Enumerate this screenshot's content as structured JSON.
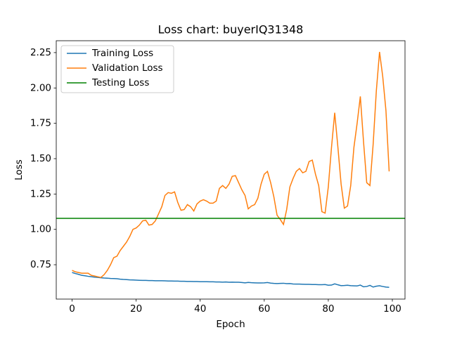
{
  "chart_data": {
    "type": "line",
    "title": "Loss chart: buyerIQ31348",
    "x_label": "Epoch",
    "y_label": "Loss",
    "x": [
      0,
      1,
      2,
      3,
      4,
      5,
      6,
      7,
      8,
      9,
      10,
      11,
      12,
      13,
      14,
      15,
      16,
      17,
      18,
      19,
      20,
      21,
      22,
      23,
      24,
      25,
      26,
      27,
      28,
      29,
      30,
      31,
      32,
      33,
      34,
      35,
      36,
      37,
      38,
      39,
      40,
      41,
      42,
      43,
      44,
      45,
      46,
      47,
      48,
      49,
      50,
      51,
      52,
      53,
      54,
      55,
      56,
      57,
      58,
      59,
      60,
      61,
      62,
      63,
      64,
      65,
      66,
      67,
      68,
      69,
      70,
      71,
      72,
      73,
      74,
      75,
      76,
      77,
      78,
      79,
      80,
      81,
      82,
      83,
      84,
      85,
      86,
      87,
      88,
      89,
      90,
      91,
      92,
      93,
      94,
      95,
      96,
      97,
      98,
      99
    ],
    "series": [
      {
        "name": "Training Loss",
        "color": "#1f77b4",
        "values": [
          0.695,
          0.688,
          0.682,
          0.675,
          0.672,
          0.668,
          0.665,
          0.662,
          0.66,
          0.658,
          0.656,
          0.655,
          0.653,
          0.652,
          0.651,
          0.648,
          0.646,
          0.645,
          0.643,
          0.642,
          0.641,
          0.64,
          0.639,
          0.639,
          0.638,
          0.638,
          0.637,
          0.637,
          0.637,
          0.636,
          0.635,
          0.635,
          0.634,
          0.634,
          0.633,
          0.633,
          0.632,
          0.632,
          0.631,
          0.631,
          0.63,
          0.63,
          0.63,
          0.629,
          0.629,
          0.628,
          0.628,
          0.627,
          0.628,
          0.626,
          0.627,
          0.626,
          0.626,
          0.624,
          0.622,
          0.625,
          0.623,
          0.622,
          0.621,
          0.621,
          0.622,
          0.624,
          0.62,
          0.618,
          0.617,
          0.618,
          0.619,
          0.616,
          0.617,
          0.614,
          0.613,
          0.613,
          0.612,
          0.611,
          0.611,
          0.61,
          0.61,
          0.609,
          0.609,
          0.61,
          0.605,
          0.606,
          0.615,
          0.608,
          0.602,
          0.603,
          0.605,
          0.602,
          0.601,
          0.6,
          0.606,
          0.594,
          0.596,
          0.604,
          0.592,
          0.598,
          0.601,
          0.596,
          0.592,
          0.59
        ]
      },
      {
        "name": "Validation Loss",
        "color": "#ff7f0e",
        "values": [
          0.71,
          0.7,
          0.695,
          0.69,
          0.69,
          0.69,
          0.675,
          0.67,
          0.665,
          0.66,
          0.68,
          0.71,
          0.75,
          0.8,
          0.81,
          0.85,
          0.88,
          0.91,
          0.95,
          1.0,
          1.01,
          1.03,
          1.06,
          1.065,
          1.03,
          1.035,
          1.06,
          1.11,
          1.16,
          1.24,
          1.26,
          1.255,
          1.265,
          1.19,
          1.135,
          1.14,
          1.175,
          1.16,
          1.13,
          1.18,
          1.2,
          1.21,
          1.2,
          1.185,
          1.185,
          1.2,
          1.29,
          1.31,
          1.29,
          1.32,
          1.375,
          1.38,
          1.33,
          1.28,
          1.24,
          1.145,
          1.165,
          1.175,
          1.22,
          1.32,
          1.39,
          1.41,
          1.33,
          1.23,
          1.1,
          1.07,
          1.035,
          1.14,
          1.3,
          1.36,
          1.41,
          1.43,
          1.4,
          1.41,
          1.48,
          1.49,
          1.39,
          1.31,
          1.125,
          1.115,
          1.3,
          1.58,
          1.825,
          1.58,
          1.32,
          1.15,
          1.165,
          1.31,
          1.58,
          1.75,
          1.94,
          1.62,
          1.33,
          1.31,
          1.6,
          1.98,
          2.255,
          2.08,
          1.84,
          1.41
        ]
      }
    ],
    "hlines": [
      {
        "name": "Testing Loss",
        "color": "#008000",
        "value": 1.078
      }
    ],
    "xlim": [
      -4.95,
      103.95
    ],
    "ylim": [
      0.507,
      2.334
    ],
    "xticks": [
      0,
      20,
      40,
      60,
      80,
      100
    ],
    "yticks": [
      0.75,
      {
        "value": 1.0,
        "label": "1.00"
      },
      1.25,
      {
        "value": 1.5,
        "label": "1.50"
      },
      1.75,
      {
        "value": 2.0,
        "label": "2.00"
      },
      2.25
    ],
    "legend": "upper left"
  }
}
